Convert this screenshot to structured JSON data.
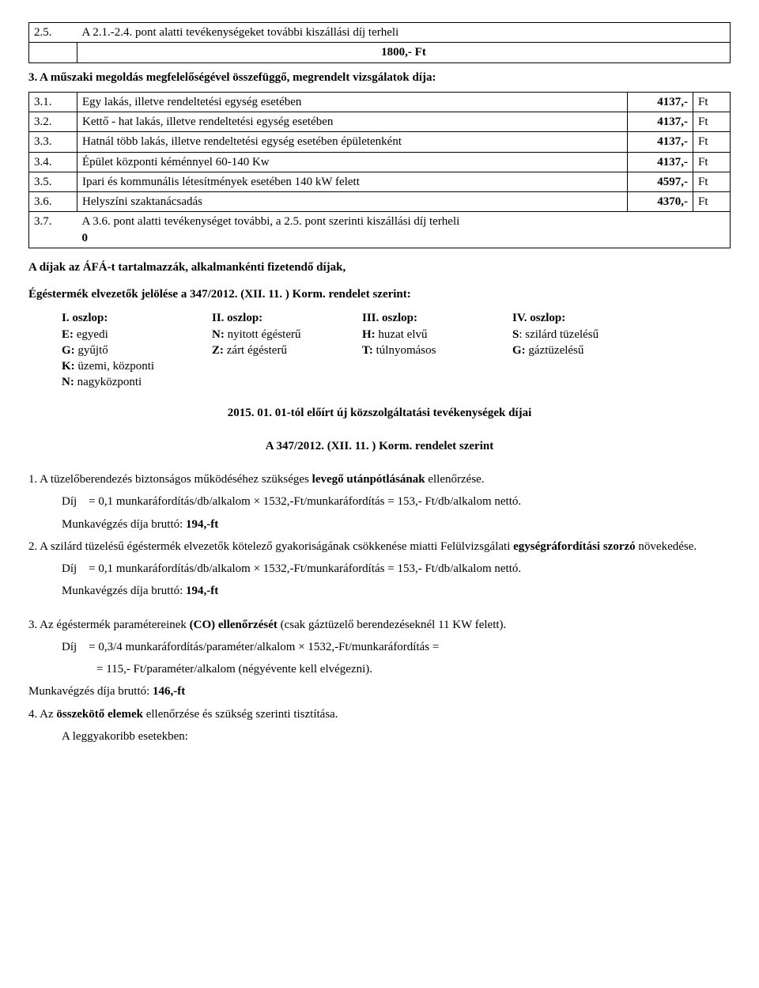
{
  "topTable": {
    "rows": [
      {
        "num": "2.5.",
        "text": "A 2.1.-2.4. pont alatti tevékenységeket további kiszállási díj terheli"
      }
    ],
    "feeRow": "1800,- Ft"
  },
  "section3": {
    "heading": "3. A műszaki megoldás megfelelőségével összefüggő, megrendelt vizsgálatok díja:",
    "rows": [
      {
        "num": "3.1.",
        "text": "Egy lakás, illetve rendeltetési egység esetében",
        "amt": "4137,-",
        "ft": "Ft"
      },
      {
        "num": "3.2.",
        "text": "Kettő - hat lakás, illetve rendeltetési egység esetében",
        "amt": "4137,-",
        "ft": "Ft"
      },
      {
        "num": "3.3.",
        "text": "Hatnál több lakás, illetve rendeltetési egység esetében épületenként",
        "amt": "4137,-",
        "ft": "Ft"
      },
      {
        "num": "3.4.",
        "text": "Épület központi kéménnyel 60-140 Kw",
        "amt": "4137,-",
        "ft": "Ft"
      },
      {
        "num": "3.5.",
        "text": "Ipari és kommunális létesítmények esetében 140 kW felett",
        "amt": "4597,-",
        "ft": "Ft"
      },
      {
        "num": "3.6.",
        "text": "Helyszíni szaktanácsadás",
        "amt": "4370,-",
        "ft": "Ft"
      }
    ],
    "noteRow": {
      "num": "3.7.",
      "text": " A 3.6. pont alatti tevékenységet további, a 2.5. pont szerinti kiszállási díj terheli",
      "zero": "0"
    }
  },
  "afaLine": "A díjak az ÁFÁ-t tartalmazzák, alkalmankénti fizetendő díjak,",
  "markingLine": "Égéstermék elvezetők jelölése a 347/2012. (XII. 11. ) Korm. rendelet szerint:",
  "columns": {
    "heads": [
      "I. oszlop:",
      "II. oszlop:",
      "III. oszlop:",
      "IV. oszlop:"
    ],
    "rows": [
      [
        {
          "b": "E:",
          "t": " egyedi"
        },
        {
          "b": "N:",
          "t": " nyitott égésterű"
        },
        {
          "b": "H:",
          "t": " huzat elvű"
        },
        {
          "b": "S",
          "t": ": szilárd tüzelésű"
        }
      ],
      [
        {
          "b": "G:",
          "t": " gyűjtő"
        },
        {
          "b": "Z:",
          "t": " zárt égésterű"
        },
        {
          "b": "T:",
          "t": " túlnyomásos"
        },
        {
          "b": "G:",
          "t": " gáztüzelésű"
        }
      ],
      [
        {
          "b": "K:",
          "t": " üzemi, központi"
        },
        {
          "b": "",
          "t": ""
        },
        {
          "b": "",
          "t": ""
        },
        {
          "b": "",
          "t": ""
        }
      ],
      [
        {
          "b": "N:",
          "t": " nagyközponti"
        },
        {
          "b": "",
          "t": ""
        },
        {
          "b": "",
          "t": ""
        },
        {
          "b": "",
          "t": ""
        }
      ]
    ]
  },
  "subTitle": "2015. 01. 01-tól előírt új közszolgáltatási tevékenységek díjai",
  "lawTitle": "A 347/2012. (XII. 11. ) Korm. rendelet szerint",
  "item1": {
    "lead": "1. A tüzelőberendezés biztonságos működéséhez szükséges ",
    "bold": "levegő utánpótlásának",
    "tail": " ellenőrzése.",
    "dij": "Díj",
    "calc": "= 0,1 munkaráfordítás/db/alkalom × 1532,-Ft/munkaráfordítás = 153,- Ft/db/alkalom nettó.",
    "brutto_pre": "Munkavégzés díja bruttó: ",
    "brutto": "194,-ft"
  },
  "item2": {
    "full_pre": "2. A szilárd tüzelésű égéstermék elvezetők kötelező gyakoriságának csökkenése miatti Felülvizsgálati ",
    "bold": "egységráfordítási szorzó",
    "tail": " növekedése.",
    "dij": "Díj",
    "calc": "= 0,1 munkaráfordítás/db/alkalom × 1532,-Ft/munkaráfordítás = 153,- Ft/db/alkalom nettó.",
    "brutto_pre": "Munkavégzés díja bruttó: ",
    "brutto": "194,-ft"
  },
  "item3": {
    "lead": "3. Az égéstermék paramétereinek ",
    "bold": "(CO) ellenőrzését",
    "tail": " (csak gáztüzelő berendezéseknél 11 KW felett).",
    "dij": "Díj",
    "calc1": "= 0,3/4 munkaráfordítás/paraméter/alkalom × 1532,-Ft/munkaráfordítás =",
    "calc2": "= 115,- Ft/paraméter/alkalom (négyévente kell elvégezni).",
    "brutto_pre": "Munkavégzés díja bruttó: ",
    "brutto": "146,-ft"
  },
  "item4": {
    "lead": "4. Az ",
    "bold": "összekötő elemek",
    "tail": " ellenőrzése és szükség szerinti tisztítása.",
    "sub": "A leggyakoribb esetekben:"
  }
}
